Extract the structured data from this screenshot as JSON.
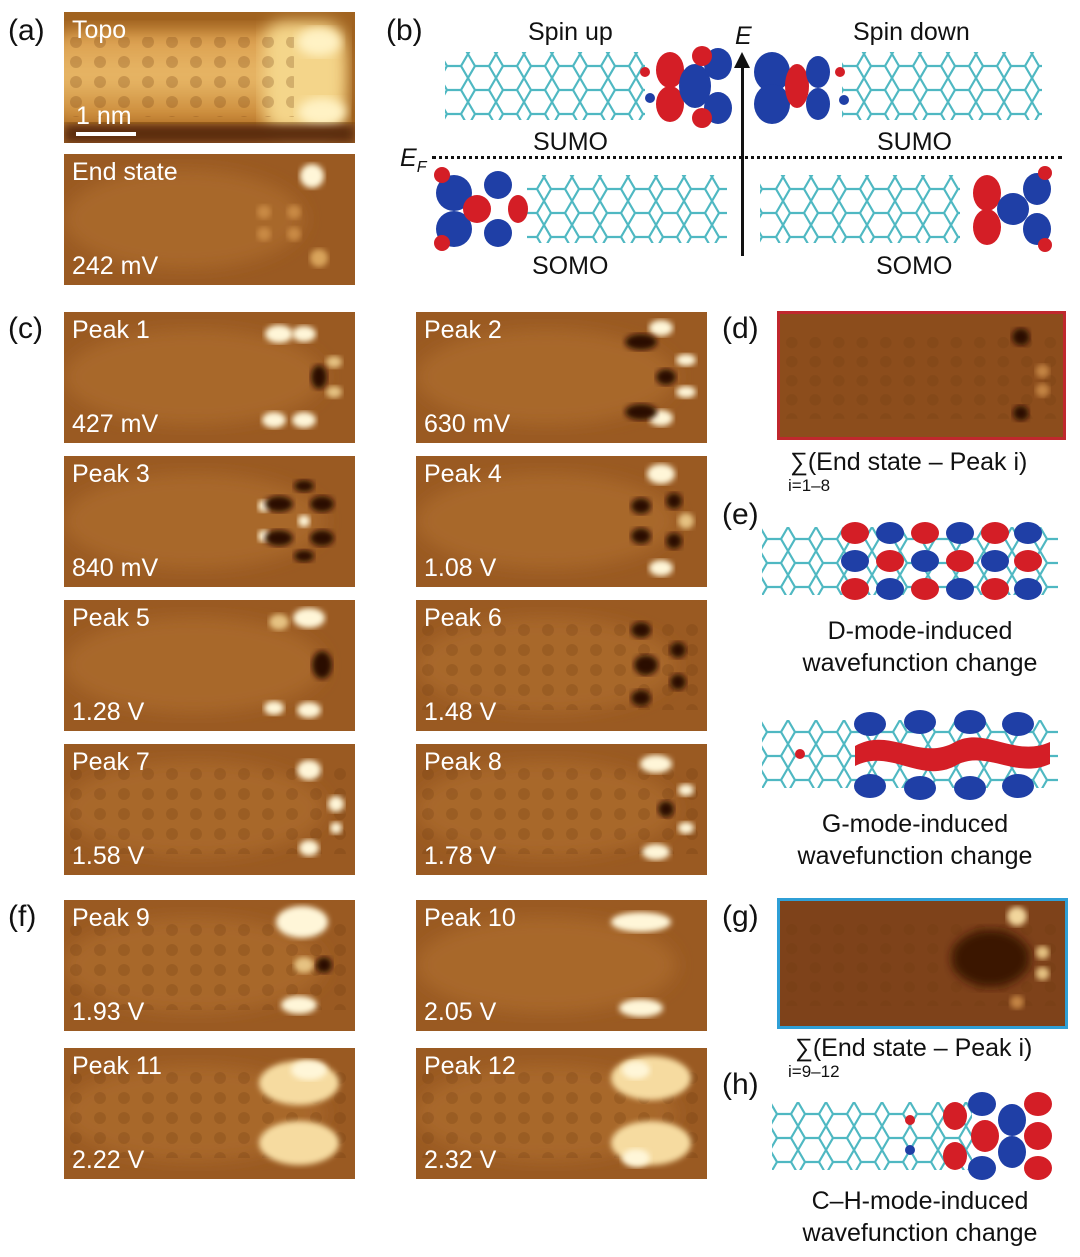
{
  "panel_labels": {
    "a": "(a)",
    "b": "(b)",
    "c": "(c)",
    "d": "(d)",
    "e": "(e)",
    "f": "(f)",
    "g": "(g)",
    "h": "(h)"
  },
  "a": {
    "topo_label": "Topo",
    "scale_bar": "1 nm",
    "end_label": "End state",
    "end_bias": "242 mV"
  },
  "b": {
    "spin_up": "Spin up",
    "spin_down": "Spin down",
    "energy_axis": "E",
    "fermi_main": "E",
    "fermi_sub": "F",
    "sumo_left": "SUMO",
    "sumo_right": "SUMO",
    "somo_left": "SOMO",
    "somo_right": "SOMO"
  },
  "c_peaks": [
    {
      "name": "Peak 1",
      "bias": "427 mV"
    },
    {
      "name": "Peak 2",
      "bias": "630 mV"
    },
    {
      "name": "Peak 3",
      "bias": "840 mV"
    },
    {
      "name": "Peak 4",
      "bias": "1.08 V"
    },
    {
      "name": "Peak 5",
      "bias": "1.28 V"
    },
    {
      "name": "Peak 6",
      "bias": "1.48 V"
    },
    {
      "name": "Peak 7",
      "bias": "1.58 V"
    },
    {
      "name": "Peak 8",
      "bias": "1.78 V"
    }
  ],
  "f_peaks": [
    {
      "name": "Peak 9",
      "bias": "1.93 V"
    },
    {
      "name": "Peak 10",
      "bias": "2.05 V"
    },
    {
      "name": "Peak 11",
      "bias": "2.22 V"
    },
    {
      "name": "Peak 12",
      "bias": "2.32 V"
    }
  ],
  "d": {
    "sum_sym": "∑",
    "formula": "(End state – Peak i)",
    "range": "i=1–8",
    "frame_color": "#c0282d"
  },
  "e": {
    "d_mode_line1": "D-mode-induced",
    "d_mode_line2": "wavefunction change",
    "g_mode_line1": "G-mode-induced",
    "g_mode_line2": "wavefunction change"
  },
  "g": {
    "sum_sym": "∑",
    "formula": "(End state – Peak i)",
    "range": "i=9–12",
    "frame_color": "#2f9fd6"
  },
  "h": {
    "line1": "C–H-mode-induced",
    "line2": "wavefunction change"
  },
  "colors": {
    "lobe_red": "#d41e26",
    "lobe_blue": "#1f3fa6",
    "atom_c": "#4fb8c2",
    "stm_base": "#9a5a22",
    "stm_bright": "#fff6d8"
  }
}
